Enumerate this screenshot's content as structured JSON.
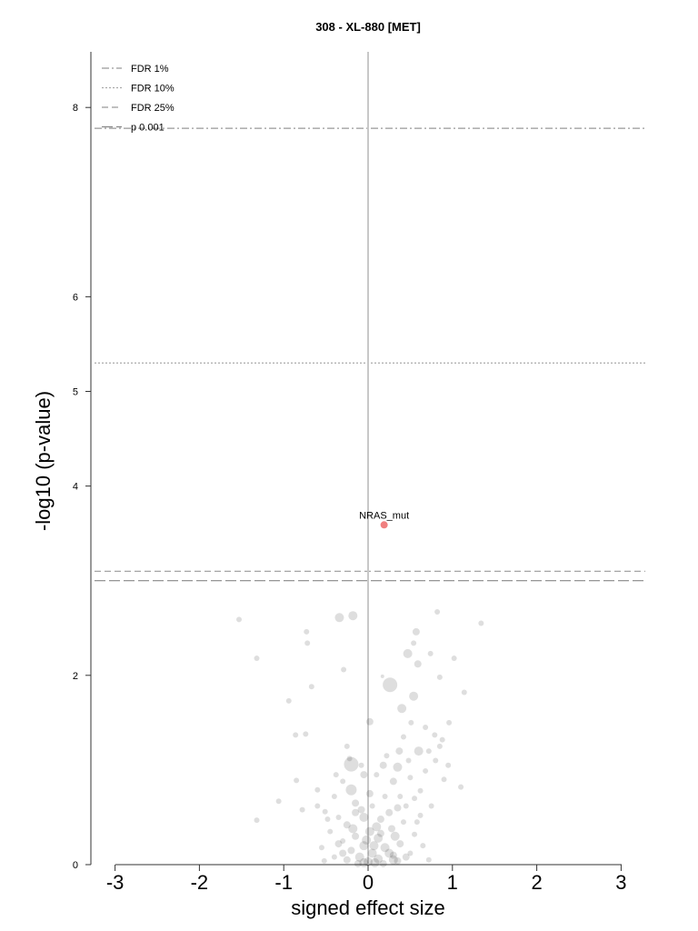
{
  "chart_data": {
    "type": "scatter",
    "title": "308 - XL-880 [MET]",
    "xlabel": "signed effect size",
    "ylabel": "-log10 (p-value)",
    "xlim": [
      -3.3,
      3.3
    ],
    "ylim": [
      0,
      8.6
    ],
    "x_ticks": [
      "-3",
      "-2",
      "-1",
      "0",
      "1",
      "2",
      "3"
    ],
    "y_ticks": [
      "0",
      "2",
      "4",
      "5",
      "6",
      "8"
    ],
    "zero_line_x": 0,
    "thresholds": [
      {
        "label": "FDR 1%",
        "y": 7.78,
        "style": "dashdot"
      },
      {
        "label": "FDR 10%",
        "y": 5.3,
        "style": "dotted"
      },
      {
        "label": "FDR 25%",
        "y": 3.1,
        "style": "dashed"
      },
      {
        "label": "p 0.001",
        "y": 3.0,
        "style": "longdash"
      }
    ],
    "legend_position": "top-left",
    "highlight": {
      "label": "NRAS_mut",
      "x": 0.19,
      "y": 3.59,
      "color": "#f08080"
    },
    "points": [
      [
        -1.53,
        2.59,
        3
      ],
      [
        -1.32,
        2.18,
        3
      ],
      [
        -0.73,
        2.46,
        3
      ],
      [
        -0.72,
        2.34,
        3
      ],
      [
        -0.34,
        2.61,
        5
      ],
      [
        -0.18,
        2.63,
        5
      ],
      [
        -0.29,
        2.06,
        3
      ],
      [
        -0.67,
        1.88,
        3
      ],
      [
        -0.94,
        1.73,
        3
      ],
      [
        -0.86,
        1.37,
        3
      ],
      [
        -0.74,
        1.38,
        3
      ],
      [
        -0.85,
        0.89,
        3
      ],
      [
        -1.06,
        0.67,
        3
      ],
      [
        -0.78,
        0.58,
        3
      ],
      [
        -1.32,
        0.47,
        3
      ],
      [
        -0.6,
        0.79,
        3
      ],
      [
        -0.51,
        0.56,
        3
      ],
      [
        0.17,
        1.99,
        2
      ],
      [
        0.26,
        1.9,
        8
      ],
      [
        0.82,
        2.67,
        3
      ],
      [
        1.34,
        2.55,
        3
      ],
      [
        0.57,
        2.46,
        4
      ],
      [
        0.54,
        2.34,
        3
      ],
      [
        0.47,
        2.23,
        5
      ],
      [
        0.74,
        2.23,
        3
      ],
      [
        1.02,
        2.18,
        3
      ],
      [
        0.59,
        2.12,
        4
      ],
      [
        0.85,
        1.98,
        3
      ],
      [
        1.14,
        1.82,
        3
      ],
      [
        0.54,
        1.78,
        5
      ],
      [
        0.4,
        1.65,
        5
      ],
      [
        0.02,
        1.51,
        4
      ],
      [
        0.51,
        1.5,
        3
      ],
      [
        0.96,
        1.5,
        3
      ],
      [
        0.79,
        1.37,
        3
      ],
      [
        0.37,
        1.2,
        4
      ],
      [
        0.6,
        1.2,
        5
      ],
      [
        0.85,
        1.25,
        3
      ],
      [
        -0.25,
        1.25,
        3
      ],
      [
        -0.2,
        1.06,
        8
      ],
      [
        0.18,
        1.05,
        4
      ],
      [
        0.35,
        1.03,
        5
      ],
      [
        0.1,
        0.95,
        3
      ],
      [
        0.3,
        0.88,
        4
      ],
      [
        0.5,
        0.92,
        3
      ],
      [
        0.68,
        0.99,
        3
      ],
      [
        0.9,
        0.9,
        3
      ],
      [
        1.1,
        0.82,
        3
      ],
      [
        -0.05,
        0.95,
        4
      ],
      [
        -0.3,
        0.88,
        3
      ],
      [
        -0.2,
        0.79,
        6
      ],
      [
        -0.4,
        0.72,
        3
      ],
      [
        0.2,
        0.72,
        3
      ],
      [
        0.55,
        0.7,
        3
      ],
      [
        0.75,
        0.62,
        3
      ],
      [
        -0.6,
        0.62,
        3
      ],
      [
        -0.15,
        0.65,
        4
      ],
      [
        0.05,
        0.62,
        3
      ],
      [
        0.35,
        0.6,
        4
      ],
      [
        0.62,
        0.52,
        3
      ],
      [
        -0.35,
        0.5,
        3
      ],
      [
        -0.05,
        0.5,
        5
      ],
      [
        0.15,
        0.48,
        4
      ],
      [
        0.42,
        0.45,
        3
      ],
      [
        -0.25,
        0.42,
        4
      ],
      [
        0.28,
        0.38,
        4
      ],
      [
        -0.45,
        0.35,
        3
      ],
      [
        0.02,
        0.35,
        5
      ],
      [
        0.55,
        0.32,
        3
      ],
      [
        -0.15,
        0.3,
        4
      ],
      [
        0.12,
        0.28,
        5
      ],
      [
        -0.3,
        0.25,
        3
      ],
      [
        0.38,
        0.22,
        4
      ],
      [
        -0.05,
        0.2,
        5
      ],
      [
        0.2,
        0.18,
        5
      ],
      [
        -0.2,
        0.15,
        4
      ],
      [
        0.05,
        0.12,
        5
      ],
      [
        0.3,
        0.1,
        4
      ],
      [
        -0.1,
        0.08,
        5
      ],
      [
        0.12,
        0.06,
        5
      ],
      [
        -0.25,
        0.05,
        4
      ],
      [
        0.35,
        0.04,
        4
      ],
      [
        0.0,
        0.03,
        5
      ],
      [
        -0.05,
        0.02,
        5
      ],
      [
        0.08,
        0.02,
        5
      ],
      [
        0.18,
        0.01,
        4
      ],
      [
        -0.12,
        0.01,
        4
      ],
      [
        -0.4,
        0.08,
        3
      ],
      [
        0.5,
        0.12,
        3
      ],
      [
        0.65,
        0.2,
        3
      ],
      [
        -0.55,
        0.18,
        3
      ],
      [
        0.72,
        0.05,
        3
      ],
      [
        -0.52,
        0.04,
        3
      ],
      [
        0.02,
        0.75,
        4
      ],
      [
        -0.08,
        0.58,
        4
      ],
      [
        0.25,
        0.55,
        4
      ],
      [
        0.1,
        0.4,
        5
      ],
      [
        -0.18,
        0.38,
        5
      ],
      [
        0.32,
        0.3,
        5
      ],
      [
        -0.35,
        0.22,
        4
      ],
      [
        0.45,
        0.62,
        3
      ],
      [
        0.62,
        0.78,
        3
      ],
      [
        0.8,
        1.1,
        3
      ],
      [
        0.88,
        1.32,
        3
      ],
      [
        -0.22,
        1.12,
        3
      ],
      [
        -0.08,
        1.05,
        3
      ],
      [
        0.42,
        1.35,
        3
      ],
      [
        0.68,
        1.45,
        3
      ],
      [
        0.3,
        0.05,
        5
      ],
      [
        -0.02,
        0.26,
        5
      ],
      [
        0.07,
        0.2,
        5
      ],
      [
        0.15,
        0.33,
        4
      ],
      [
        -0.3,
        0.12,
        4
      ],
      [
        0.25,
        0.12,
        5
      ],
      [
        0.45,
        0.08,
        4
      ],
      [
        -0.15,
        0.55,
        4
      ],
      [
        0.58,
        0.45,
        3
      ],
      [
        -0.48,
        0.48,
        3
      ],
      [
        0.38,
        0.72,
        3
      ],
      [
        -0.38,
        0.95,
        3
      ],
      [
        0.22,
        1.15,
        3
      ],
      [
        0.48,
        1.1,
        3
      ],
      [
        0.72,
        1.2,
        3
      ],
      [
        0.95,
        1.05,
        3
      ]
    ]
  }
}
